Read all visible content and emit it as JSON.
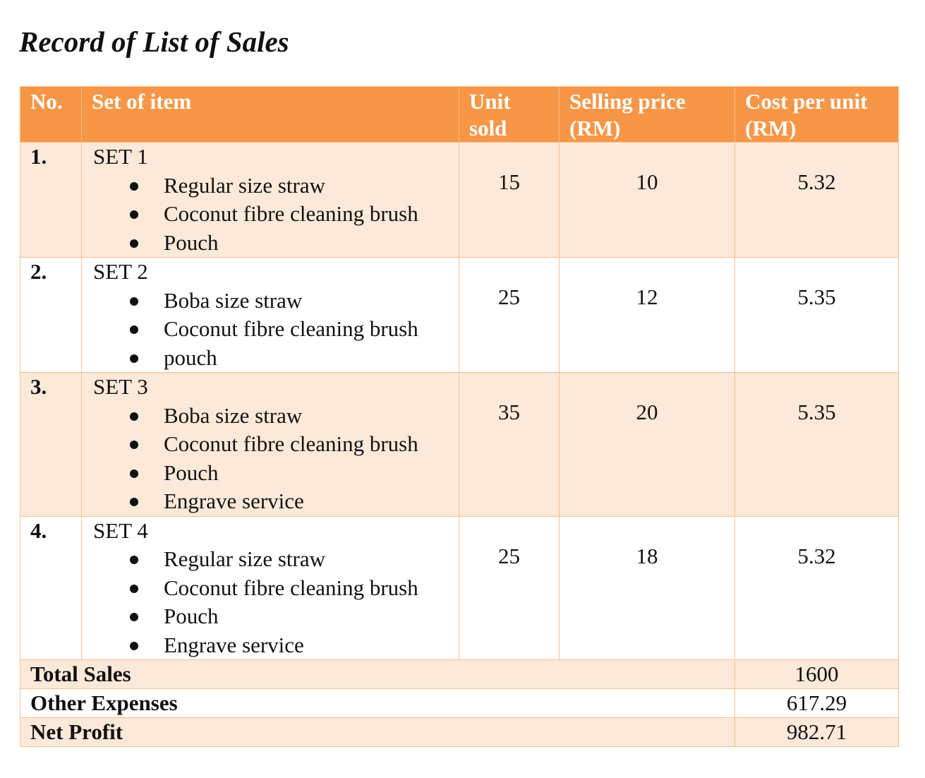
{
  "title": "Record of List of Sales",
  "table": {
    "headers": [
      [
        "No."
      ],
      [
        "Set of item"
      ],
      [
        "Unit",
        "sold"
      ],
      [
        "Selling price",
        "(RM)"
      ],
      [
        "Cost per unit",
        "(RM)"
      ]
    ],
    "rows": [
      {
        "no": "1.",
        "set": "SET 1",
        "items": [
          "Regular size straw",
          "Coconut fibre cleaning brush",
          "Pouch"
        ],
        "unit_sold": 15,
        "selling_price": 10,
        "cost_per_unit": 5.32
      },
      {
        "no": "2.",
        "set": "SET 2",
        "items": [
          "Boba size straw",
          "Coconut fibre cleaning brush",
          "pouch"
        ],
        "unit_sold": 25,
        "selling_price": 12,
        "cost_per_unit": 5.35
      },
      {
        "no": "3.",
        "set": "SET 3",
        "items": [
          "Boba size straw",
          "Coconut fibre cleaning brush",
          "Pouch",
          "Engrave service"
        ],
        "unit_sold": 35,
        "selling_price": 20,
        "cost_per_unit": 5.35
      },
      {
        "no": "4.",
        "set": "SET 4",
        "items": [
          "Regular size straw",
          "Coconut fibre cleaning brush",
          "Pouch",
          "Engrave service"
        ],
        "unit_sold": 25,
        "selling_price": 18,
        "cost_per_unit": 5.32
      }
    ],
    "summary": [
      {
        "label": "Total Sales",
        "value": 1600
      },
      {
        "label": "Other Expenses",
        "value": 617.29
      },
      {
        "label": "Net Profit",
        "value": 982.71
      }
    ]
  }
}
